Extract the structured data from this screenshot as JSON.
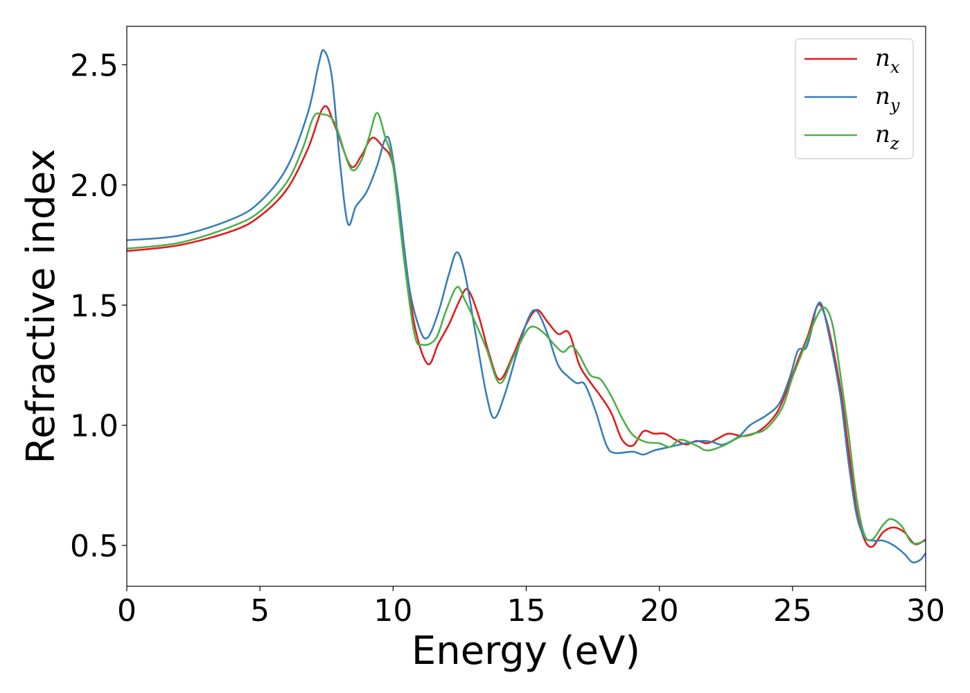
{
  "chart_data": {
    "type": "line",
    "title": "",
    "xlabel": "Energy (eV)",
    "ylabel": "Refractive index",
    "xlim": [
      0,
      30
    ],
    "ylim": [
      0.33,
      2.66
    ],
    "xticks": [
      0,
      5,
      10,
      15,
      20,
      25,
      30
    ],
    "yticks": [
      0.5,
      1.0,
      1.5,
      2.0,
      2.5
    ],
    "xtick_labels": [
      "0",
      "5",
      "10",
      "15",
      "20",
      "25",
      "30"
    ],
    "ytick_labels": [
      "0.5",
      "1.0",
      "1.5",
      "2.0",
      "2.5"
    ],
    "grid": false,
    "legend_position": "top-right",
    "series": [
      {
        "name": "n_x",
        "label_base": "n",
        "label_sub": "x",
        "color": "#e41a1c",
        "points": [
          [
            0,
            1.725
          ],
          [
            2,
            1.75
          ],
          [
            4,
            1.81
          ],
          [
            5,
            1.87
          ],
          [
            6,
            1.98
          ],
          [
            6.8,
            2.15
          ],
          [
            7.4,
            2.325
          ],
          [
            7.8,
            2.25
          ],
          [
            8.4,
            2.08
          ],
          [
            8.8,
            2.12
          ],
          [
            9.2,
            2.195
          ],
          [
            9.6,
            2.16
          ],
          [
            10,
            2.08
          ],
          [
            10.4,
            1.75
          ],
          [
            10.8,
            1.42
          ],
          [
            11.3,
            1.255
          ],
          [
            11.7,
            1.34
          ],
          [
            12.1,
            1.42
          ],
          [
            12.5,
            1.52
          ],
          [
            12.8,
            1.565
          ],
          [
            13.2,
            1.46
          ],
          [
            13.6,
            1.3
          ],
          [
            14.0,
            1.19
          ],
          [
            14.5,
            1.29
          ],
          [
            15.0,
            1.42
          ],
          [
            15.4,
            1.48
          ],
          [
            15.8,
            1.43
          ],
          [
            16.2,
            1.38
          ],
          [
            16.6,
            1.385
          ],
          [
            17.0,
            1.25
          ],
          [
            17.4,
            1.18
          ],
          [
            17.8,
            1.12
          ],
          [
            18.2,
            1.05
          ],
          [
            18.6,
            0.94
          ],
          [
            19.0,
            0.915
          ],
          [
            19.4,
            0.975
          ],
          [
            19.8,
            0.965
          ],
          [
            20.2,
            0.965
          ],
          [
            20.6,
            0.94
          ],
          [
            21.0,
            0.92
          ],
          [
            21.4,
            0.935
          ],
          [
            21.8,
            0.925
          ],
          [
            22.2,
            0.945
          ],
          [
            22.6,
            0.965
          ],
          [
            23.2,
            0.955
          ],
          [
            23.8,
            0.98
          ],
          [
            24.4,
            1.05
          ],
          [
            24.8,
            1.15
          ],
          [
            25.2,
            1.27
          ],
          [
            25.6,
            1.38
          ],
          [
            25.9,
            1.49
          ],
          [
            26.1,
            1.49
          ],
          [
            26.4,
            1.38
          ],
          [
            26.8,
            1.15
          ],
          [
            27.1,
            0.9
          ],
          [
            27.4,
            0.65
          ],
          [
            27.7,
            0.525
          ],
          [
            28.0,
            0.495
          ],
          [
            28.4,
            0.555
          ],
          [
            28.8,
            0.575
          ],
          [
            29.2,
            0.555
          ],
          [
            29.6,
            0.505
          ],
          [
            30,
            0.525
          ]
        ]
      },
      {
        "name": "n_y",
        "label_base": "n",
        "label_sub": "y",
        "color": "#377eb8",
        "points": [
          [
            0,
            1.77
          ],
          [
            2,
            1.79
          ],
          [
            4,
            1.86
          ],
          [
            5,
            1.93
          ],
          [
            6,
            2.07
          ],
          [
            6.8,
            2.3
          ],
          [
            7.2,
            2.5
          ],
          [
            7.4,
            2.56
          ],
          [
            7.7,
            2.45
          ],
          [
            8.0,
            2.1
          ],
          [
            8.3,
            1.84
          ],
          [
            8.6,
            1.91
          ],
          [
            9.0,
            1.97
          ],
          [
            9.4,
            2.08
          ],
          [
            9.7,
            2.19
          ],
          [
            9.9,
            2.17
          ],
          [
            10.2,
            1.95
          ],
          [
            10.6,
            1.58
          ],
          [
            11.0,
            1.4
          ],
          [
            11.3,
            1.365
          ],
          [
            11.7,
            1.47
          ],
          [
            12.1,
            1.63
          ],
          [
            12.4,
            1.72
          ],
          [
            12.7,
            1.63
          ],
          [
            13.1,
            1.38
          ],
          [
            13.5,
            1.13
          ],
          [
            13.8,
            1.03
          ],
          [
            14.2,
            1.13
          ],
          [
            14.7,
            1.32
          ],
          [
            15.1,
            1.45
          ],
          [
            15.4,
            1.475
          ],
          [
            15.8,
            1.38
          ],
          [
            16.2,
            1.25
          ],
          [
            16.6,
            1.2
          ],
          [
            16.9,
            1.175
          ],
          [
            17.2,
            1.17
          ],
          [
            17.6,
            1.06
          ],
          [
            18.0,
            0.92
          ],
          [
            18.3,
            0.885
          ],
          [
            19.0,
            0.89
          ],
          [
            19.4,
            0.878
          ],
          [
            19.8,
            0.895
          ],
          [
            20.4,
            0.91
          ],
          [
            21.0,
            0.925
          ],
          [
            21.6,
            0.935
          ],
          [
            22.0,
            0.93
          ],
          [
            22.4,
            0.92
          ],
          [
            23.0,
            0.955
          ],
          [
            23.4,
            1.0
          ],
          [
            24.0,
            1.04
          ],
          [
            24.5,
            1.09
          ],
          [
            24.9,
            1.2
          ],
          [
            25.2,
            1.31
          ],
          [
            25.5,
            1.32
          ],
          [
            25.7,
            1.39
          ],
          [
            25.9,
            1.49
          ],
          [
            26.1,
            1.5
          ],
          [
            26.4,
            1.36
          ],
          [
            26.8,
            1.12
          ],
          [
            27.1,
            0.85
          ],
          [
            27.4,
            0.63
          ],
          [
            27.7,
            0.535
          ],
          [
            28.0,
            0.52
          ],
          [
            28.4,
            0.52
          ],
          [
            28.8,
            0.5
          ],
          [
            29.2,
            0.465
          ],
          [
            29.5,
            0.43
          ],
          [
            29.8,
            0.44
          ],
          [
            30,
            0.468
          ]
        ]
      },
      {
        "name": "n_z",
        "label_base": "n",
        "label_sub": "z",
        "color": "#4daf4a",
        "points": [
          [
            0,
            1.735
          ],
          [
            2,
            1.76
          ],
          [
            4,
            1.83
          ],
          [
            5,
            1.89
          ],
          [
            6,
            2.01
          ],
          [
            6.6,
            2.15
          ],
          [
            7.0,
            2.28
          ],
          [
            7.3,
            2.295
          ],
          [
            7.8,
            2.26
          ],
          [
            8.4,
            2.07
          ],
          [
            8.8,
            2.1
          ],
          [
            9.1,
            2.2
          ],
          [
            9.4,
            2.3
          ],
          [
            9.7,
            2.2
          ],
          [
            10.0,
            2.08
          ],
          [
            10.4,
            1.7
          ],
          [
            10.8,
            1.38
          ],
          [
            11.1,
            1.335
          ],
          [
            11.6,
            1.36
          ],
          [
            12.0,
            1.48
          ],
          [
            12.4,
            1.575
          ],
          [
            12.7,
            1.52
          ],
          [
            13.0,
            1.45
          ],
          [
            13.5,
            1.32
          ],
          [
            14.0,
            1.175
          ],
          [
            14.5,
            1.28
          ],
          [
            15.0,
            1.39
          ],
          [
            15.3,
            1.41
          ],
          [
            15.7,
            1.38
          ],
          [
            16.1,
            1.33
          ],
          [
            16.4,
            1.305
          ],
          [
            16.7,
            1.33
          ],
          [
            17.0,
            1.29
          ],
          [
            17.4,
            1.21
          ],
          [
            17.8,
            1.19
          ],
          [
            18.2,
            1.12
          ],
          [
            18.6,
            1.03
          ],
          [
            19.0,
            0.96
          ],
          [
            19.5,
            0.93
          ],
          [
            20.0,
            0.925
          ],
          [
            20.4,
            0.91
          ],
          [
            20.8,
            0.94
          ],
          [
            21.4,
            0.915
          ],
          [
            21.8,
            0.895
          ],
          [
            22.4,
            0.915
          ],
          [
            23.0,
            0.95
          ],
          [
            23.5,
            0.965
          ],
          [
            24.0,
            0.985
          ],
          [
            24.6,
            1.07
          ],
          [
            25.0,
            1.2
          ],
          [
            25.5,
            1.34
          ],
          [
            25.9,
            1.45
          ],
          [
            26.2,
            1.49
          ],
          [
            26.5,
            1.42
          ],
          [
            26.8,
            1.21
          ],
          [
            27.1,
            0.97
          ],
          [
            27.4,
            0.7
          ],
          [
            27.7,
            0.545
          ],
          [
            28.0,
            0.525
          ],
          [
            28.4,
            0.585
          ],
          [
            28.7,
            0.61
          ],
          [
            29.1,
            0.58
          ],
          [
            29.5,
            0.51
          ],
          [
            30,
            0.52
          ]
        ]
      }
    ]
  }
}
